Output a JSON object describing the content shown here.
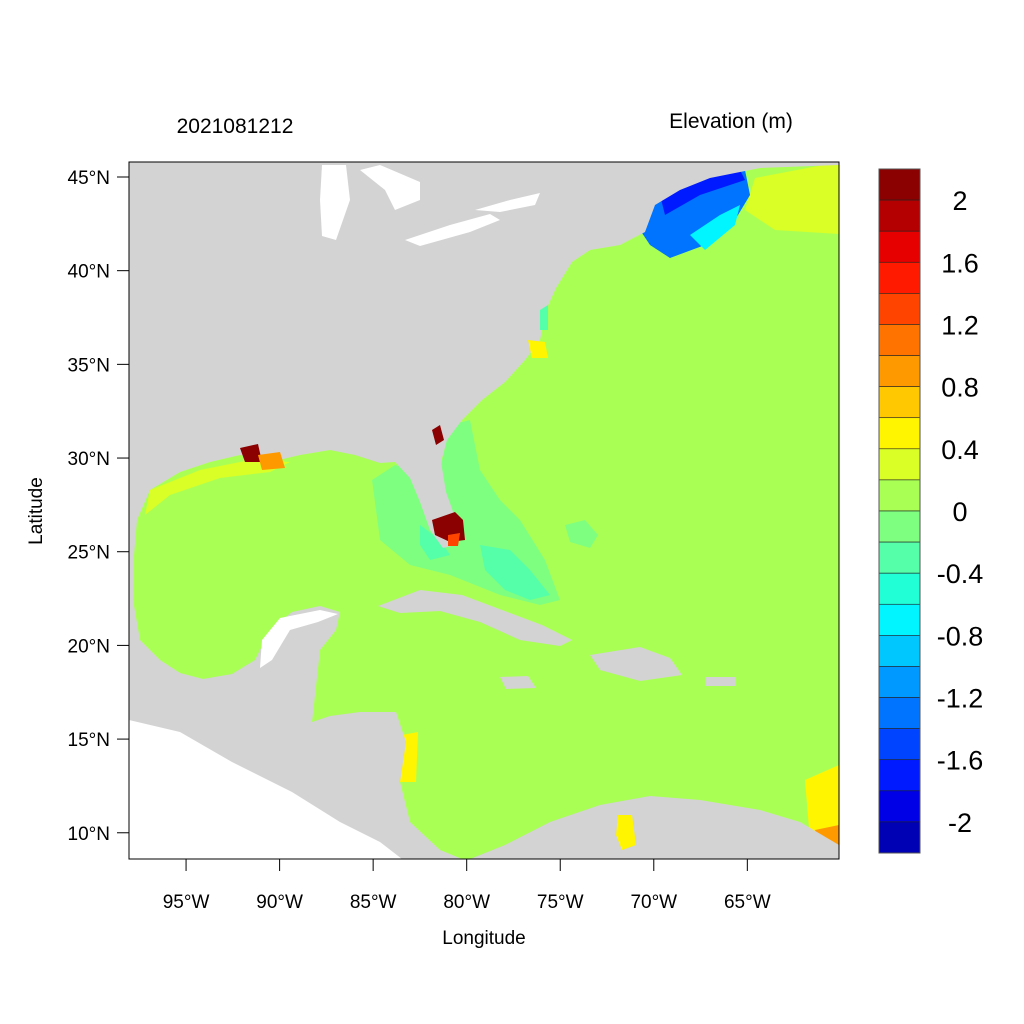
{
  "title_left": "2021081212",
  "title_right": "Elevation (m)",
  "xlabel": "Longitude",
  "ylabel": "Latitude",
  "x_ticks": [
    "95°W",
    "90°W",
    "85°W",
    "80°W",
    "75°W",
    "70°W",
    "65°W"
  ],
  "x_tick_values": [
    -95,
    -90,
    -85,
    -80,
    -75,
    -70,
    -65
  ],
  "y_ticks": [
    "45°N",
    "40°N",
    "35°N",
    "30°N",
    "25°N",
    "20°N",
    "15°N",
    "10°N"
  ],
  "y_tick_values": [
    45,
    40,
    35,
    30,
    25,
    20,
    15,
    10
  ],
  "lon_range": [
    -98.05,
    -60.1
  ],
  "lat_range": [
    8.6,
    45.8
  ],
  "colors": {
    "land": "#d3d3d3",
    "no_data": "#ffffff",
    "background_level": "#aaff55"
  },
  "colorbar": {
    "levels_top_to_bottom": [
      2.2,
      2.0,
      1.8,
      1.6,
      1.4,
      1.2,
      1.0,
      0.8,
      0.6,
      0.4,
      0.2,
      0,
      -0.2,
      -0.4,
      -0.6,
      -0.8,
      -1.0,
      -1.2,
      -1.4,
      -1.6,
      -1.8,
      -2.0,
      -2.2
    ],
    "colors_top_to_bottom": [
      "#8b0000",
      "#b40000",
      "#e60000",
      "#ff1a00",
      "#ff4400",
      "#ff7300",
      "#ff9900",
      "#ffc800",
      "#fff500",
      "#d9ff26",
      "#aaff55",
      "#7fff7f",
      "#55ffaa",
      "#20ffd5",
      "#00f5ff",
      "#00c8ff",
      "#0099ff",
      "#0073ff",
      "#0044ff",
      "#001aff",
      "#0000e6",
      "#0000b4"
    ],
    "labels": [
      "2",
      "1.6",
      "1.2",
      "0.8",
      "0.4",
      "0",
      "-0.4",
      "-0.8",
      "-1.2",
      "-1.6",
      "-2"
    ],
    "label_values": [
      2,
      1.6,
      1.2,
      0.8,
      0.4,
      0,
      -0.4,
      -0.8,
      -1.2,
      -1.6,
      -2
    ]
  }
}
